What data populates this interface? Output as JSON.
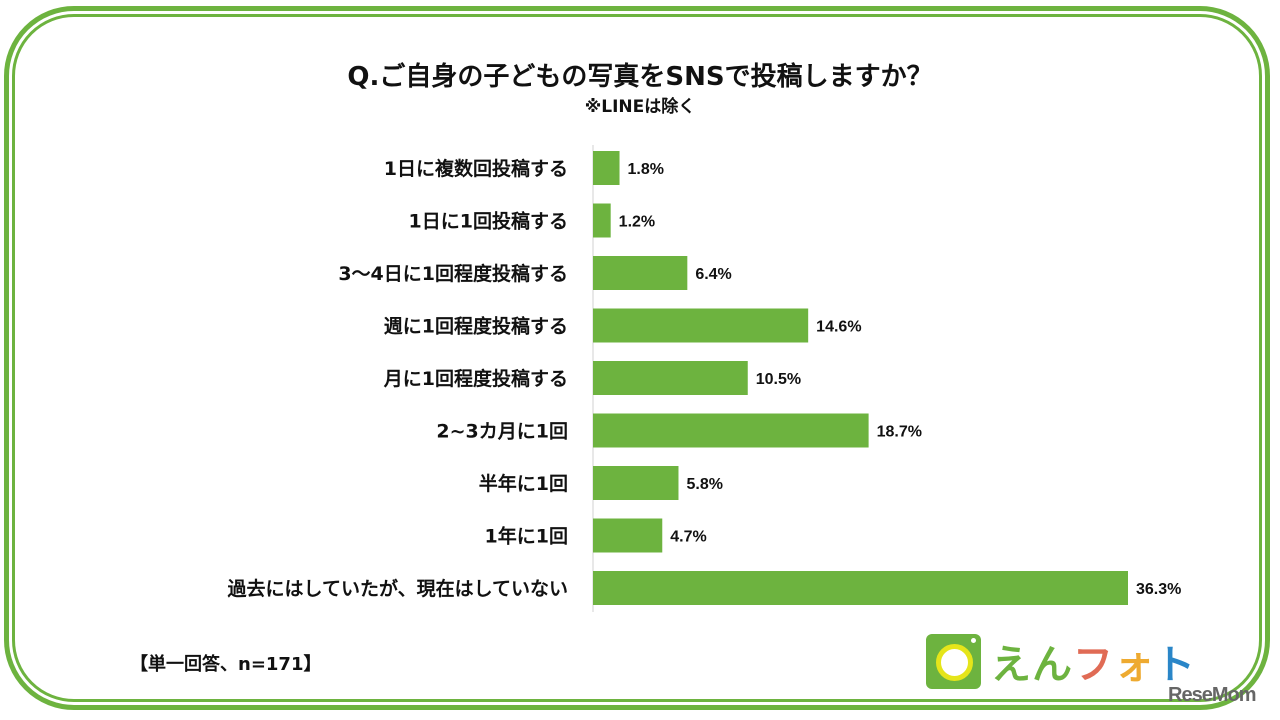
{
  "chart_data": {
    "type": "bar",
    "orientation": "horizontal",
    "title": "Q.ご自身の子どもの写真をSNSで投稿しますか？",
    "subtitle": "※LINEは除く",
    "categories": [
      "1日に複数回投稿する",
      "1日に1回投稿する",
      "3～4日に1回程度投稿する",
      "週に1回程度投稿する",
      "月に1回程度投稿する",
      "2~3カ月に1回",
      "半年に1回",
      "1年に1回",
      "過去にはしていたが、現在はしていない"
    ],
    "values": [
      1.8,
      1.2,
      6.4,
      14.6,
      10.5,
      18.7,
      5.8,
      4.7,
      36.3
    ],
    "value_labels": [
      "1.8%",
      "1.2%",
      "6.4%",
      "14.6%",
      "10.5%",
      "18.7%",
      "5.8%",
      "4.7%",
      "36.3%"
    ],
    "xlim": [
      0,
      36.3
    ],
    "grid": false,
    "bar_color": "#6db33f"
  },
  "footnote": "【単一回答、n=171】",
  "logo": {
    "text": [
      "え",
      "ん",
      "フ",
      "ォ",
      "ト"
    ],
    "colors": [
      "#6db33f",
      "#6db33f",
      "#e06b55",
      "#eeaa30",
      "#2a86c8"
    ]
  },
  "watermark": "ReseMom"
}
